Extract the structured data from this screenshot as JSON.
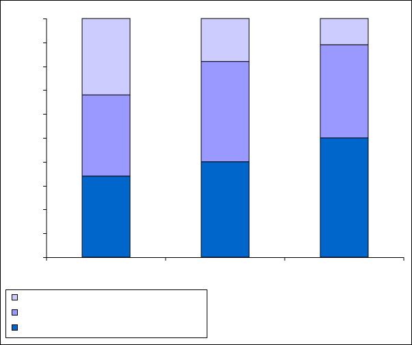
{
  "chart_data": {
    "type": "stacked-bar",
    "categories": [
      null,
      null,
      null
    ],
    "series": [
      {
        "color": "#0066cc",
        "values": [
          34,
          40,
          50
        ]
      },
      {
        "color": "#9999ff",
        "values": [
          34,
          42,
          39
        ]
      },
      {
        "color": "#ccccff",
        "values": [
          32,
          18,
          11
        ]
      }
    ],
    "ylim": [
      0,
      100
    ],
    "yticks": [
      0,
      10,
      20,
      30,
      40,
      50,
      60,
      70,
      80,
      90,
      100
    ],
    "grid": false
  }
}
